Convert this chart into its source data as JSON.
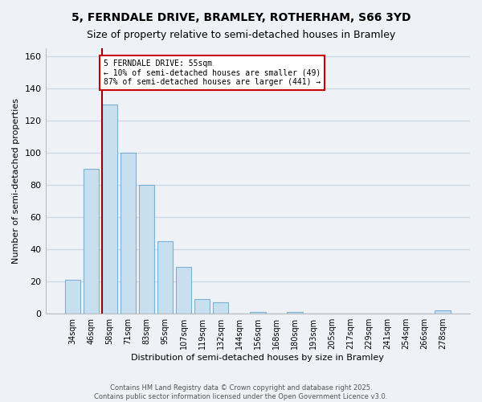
{
  "title": "5, FERNDALE DRIVE, BRAMLEY, ROTHERHAM, S66 3YD",
  "subtitle": "Size of property relative to semi-detached houses in Bramley",
  "xlabel": "Distribution of semi-detached houses by size in Bramley",
  "ylabel": "Number of semi-detached properties",
  "footer_line1": "Contains HM Land Registry data © Crown copyright and database right 2025.",
  "footer_line2": "Contains public sector information licensed under the Open Government Licence v3.0.",
  "categories": [
    "34sqm",
    "46sqm",
    "58sqm",
    "71sqm",
    "83sqm",
    "95sqm",
    "107sqm",
    "119sqm",
    "132sqm",
    "144sqm",
    "156sqm",
    "168sqm",
    "180sqm",
    "193sqm",
    "205sqm",
    "217sqm",
    "229sqm",
    "241sqm",
    "254sqm",
    "266sqm",
    "278sqm"
  ],
  "values": [
    21,
    90,
    130,
    100,
    80,
    45,
    29,
    9,
    7,
    0,
    1,
    0,
    1,
    0,
    0,
    0,
    0,
    0,
    0,
    0,
    2
  ],
  "bar_color": "#c8dff0",
  "bar_edge_color": "#7ab0d4",
  "highlight_index": 2,
  "highlight_line_color": "#990000",
  "ylim": [
    0,
    165
  ],
  "yticks": [
    0,
    20,
    40,
    60,
    80,
    100,
    120,
    140,
    160
  ],
  "annotation_line1": "5 FERNDALE DRIVE: 55sqm",
  "annotation_line2": "← 10% of semi-detached houses are smaller (49)",
  "annotation_line3": "87% of semi-detached houses are larger (441) →",
  "background_color": "#eef2f7",
  "grid_color": "#d0d8e8",
  "title_fontsize": 10,
  "subtitle_fontsize": 9
}
